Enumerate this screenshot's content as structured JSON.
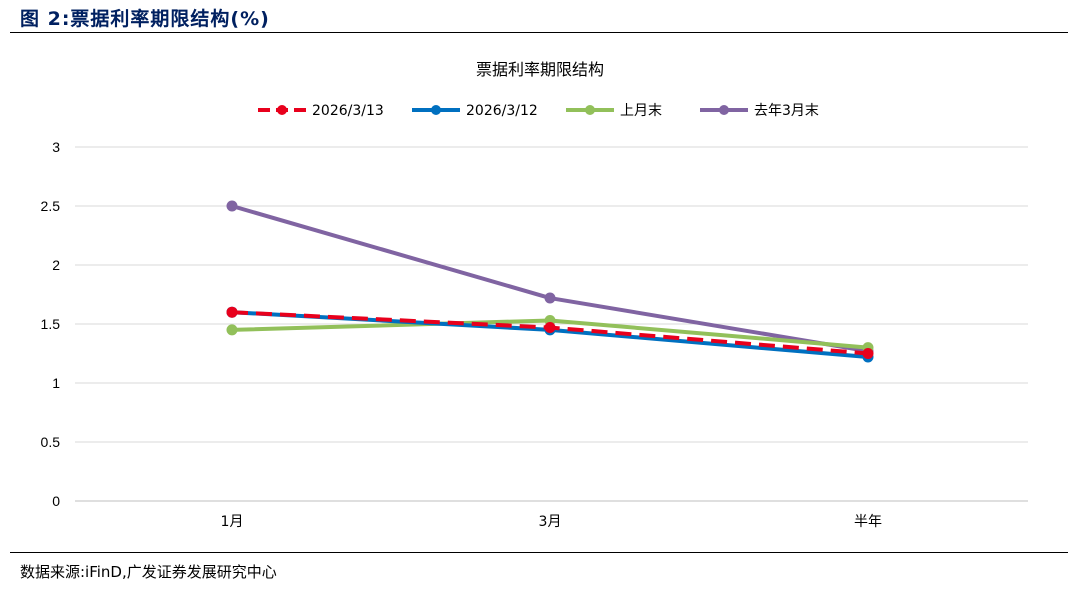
{
  "figure": {
    "title": "图 2:票据利率期限结构(%)",
    "source": "数据来源:iFinD,广发证券发展研究中心"
  },
  "chart_data": {
    "type": "line",
    "title": "票据利率期限结构",
    "categories": [
      "1月",
      "3月",
      "半年"
    ],
    "ylim": [
      0,
      3
    ],
    "yticks": [
      "0",
      "0.5",
      "1",
      "1.5",
      "2",
      "2.5",
      "3"
    ],
    "grid": true,
    "legend": "top",
    "series": [
      {
        "name": "2026/3/13",
        "values": [
          1.6,
          1.47,
          1.25
        ],
        "color": "#E8001C",
        "dash": true
      },
      {
        "name": "2026/3/12",
        "values": [
          1.6,
          1.45,
          1.22
        ],
        "color": "#0070C0",
        "dash": false
      },
      {
        "name": "上月末",
        "values": [
          1.45,
          1.53,
          1.3
        ],
        "color": "#92C05A",
        "dash": false
      },
      {
        "name": "去年3月末",
        "values": [
          2.5,
          1.72,
          1.27
        ],
        "color": "#8064A2",
        "dash": false
      }
    ]
  }
}
